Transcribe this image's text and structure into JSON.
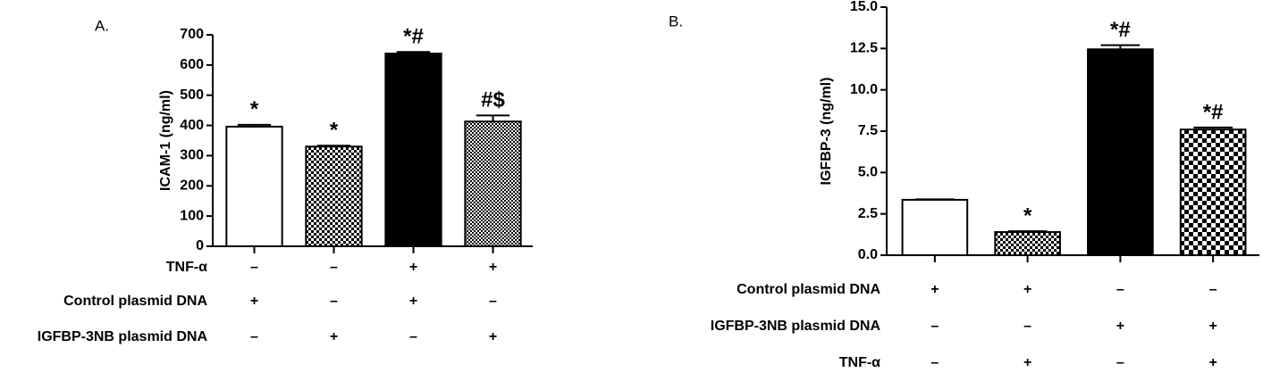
{
  "chart_data": [
    {
      "type": "bar",
      "panel_label": "A.",
      "y_label": "ICAM-1 (ng/ml)",
      "categories": [
        null,
        null,
        null,
        null
      ],
      "values": [
        396,
        330,
        638,
        413
      ],
      "errors": [
        6,
        3,
        5,
        20
      ],
      "bar_styles": [
        "white",
        "checker",
        "black",
        "fine-checker"
      ],
      "annotations": [
        "*",
        "*",
        "*#",
        "#$"
      ],
      "ylim": [
        0,
        700
      ],
      "yticks": [
        0,
        100,
        200,
        300,
        400,
        500,
        600,
        700
      ],
      "conditions": [
        {
          "label": "TNF-α",
          "signs": [
            "–",
            "–",
            "+",
            "+"
          ]
        },
        {
          "label": "Control plasmid DNA",
          "signs": [
            "+",
            "–",
            "+",
            "–"
          ]
        },
        {
          "label": "IGFBP-3NB plasmid DNA",
          "signs": [
            "–",
            "+",
            "–",
            "+"
          ]
        }
      ]
    },
    {
      "type": "bar",
      "panel_label": "B.",
      "y_label": "IGFBP-3 (ng/ml)",
      "categories": [
        null,
        null,
        null,
        null
      ],
      "values": [
        3.35,
        1.4,
        12.45,
        7.6
      ],
      "errors": [
        0.03,
        0.05,
        0.25,
        0.12
      ],
      "bar_styles": [
        "white",
        "checker",
        "black",
        "large-checker"
      ],
      "annotations": [
        "",
        "*",
        "*#",
        "*#"
      ],
      "ylim": [
        0,
        15
      ],
      "yticks": [
        {
          "value": 0,
          "label": "0.0"
        },
        2.5,
        {
          "value": 5,
          "label": "5.0"
        },
        7.5,
        {
          "value": 10,
          "label": "10.0"
        },
        12.5,
        {
          "value": 15,
          "label": "15.0"
        }
      ],
      "conditions": [
        {
          "label": "Control plasmid DNA",
          "signs": [
            "+",
            "+",
            "–",
            "–"
          ]
        },
        {
          "label": "IGFBP-3NB plasmid DNA",
          "signs": [
            "–",
            "–",
            "+",
            "+"
          ]
        },
        {
          "label": "TNF-α",
          "signs": [
            "–",
            "+",
            "–",
            "+"
          ]
        }
      ]
    }
  ]
}
